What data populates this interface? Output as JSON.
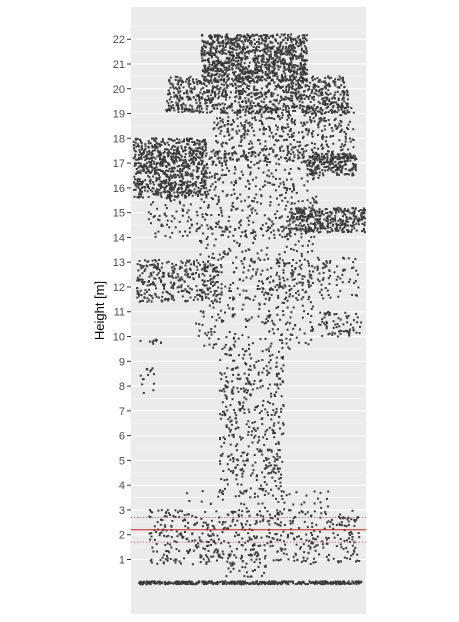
{
  "chart_data": {
    "type": "scatter",
    "title": "",
    "xlabel": "",
    "ylabel": "Height [m]",
    "ylim": [
      -1.2,
      23.3
    ],
    "y_ticks": [
      1,
      2,
      3,
      4,
      5,
      6,
      7,
      8,
      9,
      10,
      11,
      12,
      13,
      14,
      15,
      16,
      17,
      18,
      19,
      20,
      21,
      22
    ],
    "x_axis_visible": false,
    "x_range_relative": [
      -1,
      1
    ],
    "grid": "horizontal",
    "panel_background": "#ebebeb",
    "point_color": "#3a3a3a",
    "reference_lines": [
      {
        "y": 2.2,
        "style": "solid",
        "color": "#cc2222"
      },
      {
        "y": 2.7,
        "style": "dotted",
        "color": "#cc2222"
      },
      {
        "y": 1.7,
        "style": "dotted",
        "color": "#cc2222"
      }
    ],
    "point_clusters": [
      {
        "y_min": 0.0,
        "y_max": 0.12,
        "x_min": -0.93,
        "x_max": 0.96,
        "count": 420
      },
      {
        "y_min": 0.3,
        "y_max": 1.7,
        "x_min": -0.2,
        "x_max": 0.15,
        "count": 45
      },
      {
        "y_min": 0.8,
        "y_max": 3.0,
        "x_min": -0.85,
        "x_max": 0.95,
        "count": 520
      },
      {
        "y_min": 3.0,
        "y_max": 3.8,
        "x_min": -0.6,
        "x_max": 0.7,
        "count": 40
      },
      {
        "y_min": 3.5,
        "y_max": 9.5,
        "x_min": -0.25,
        "x_max": 0.3,
        "count": 440
      },
      {
        "y_min": 7.5,
        "y_max": 8.8,
        "x_min": -0.92,
        "x_max": -0.8,
        "count": 14
      },
      {
        "y_min": 9.7,
        "y_max": 9.9,
        "x_min": -0.92,
        "x_max": -0.7,
        "count": 10
      },
      {
        "y_min": 9.5,
        "y_max": 14.5,
        "x_min": -0.45,
        "x_max": 0.55,
        "count": 420
      },
      {
        "y_min": 10.0,
        "y_max": 11.0,
        "x_min": 0.6,
        "x_max": 0.96,
        "count": 70
      },
      {
        "y_min": 11.4,
        "y_max": 13.1,
        "x_min": -0.95,
        "x_max": -0.25,
        "count": 300
      },
      {
        "y_min": 11.5,
        "y_max": 13.2,
        "x_min": 0.15,
        "x_max": 0.95,
        "count": 140
      },
      {
        "y_min": 14.2,
        "y_max": 15.2,
        "x_min": 0.35,
        "x_max": 1.0,
        "count": 320
      },
      {
        "y_min": 14.0,
        "y_max": 17.5,
        "x_min": -0.85,
        "x_max": 0.6,
        "count": 520
      },
      {
        "y_min": 15.6,
        "y_max": 18.0,
        "x_min": -0.98,
        "x_max": -0.35,
        "count": 700
      },
      {
        "y_min": 16.5,
        "y_max": 17.4,
        "x_min": 0.5,
        "x_max": 0.92,
        "count": 200
      },
      {
        "y_min": 17.0,
        "y_max": 19.3,
        "x_min": -0.3,
        "x_max": 0.9,
        "count": 500
      },
      {
        "y_min": 19.0,
        "y_max": 20.5,
        "x_min": -0.7,
        "x_max": 0.85,
        "count": 900
      },
      {
        "y_min": 20.3,
        "y_max": 22.2,
        "x_min": -0.4,
        "x_max": 0.5,
        "count": 1000
      }
    ]
  }
}
